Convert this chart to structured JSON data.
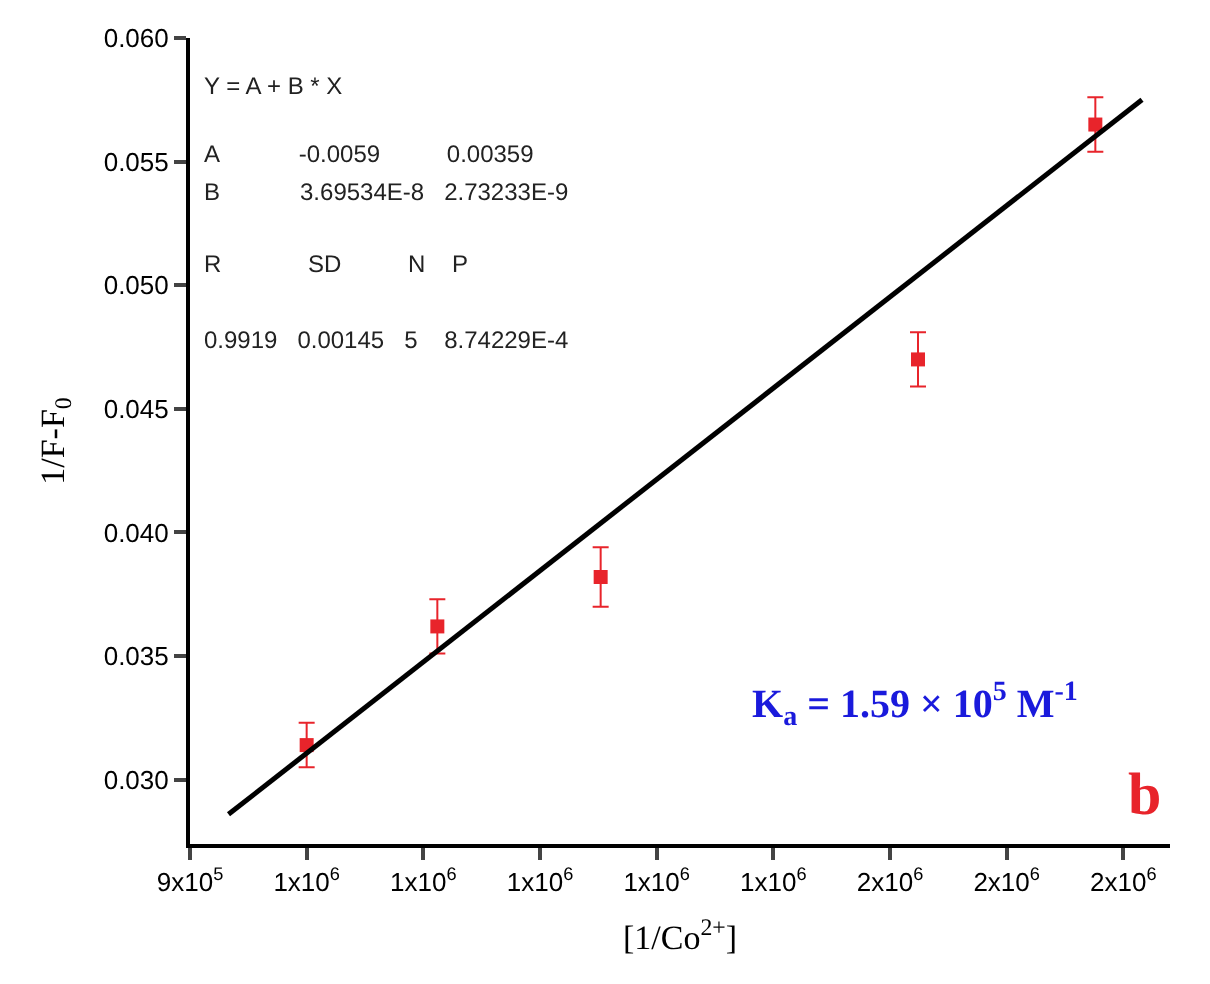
{
  "chart_data": {
    "type": "scatter",
    "xlabel": "[1/Co$^{2+}$]",
    "ylabel": "1/F-F$_{0}$",
    "xlim": [
      900000,
      1740000
    ],
    "ylim": [
      0.0274,
      0.06
    ],
    "xticks": [
      {
        "value": 900000,
        "label": "9x10$^{5}$"
      },
      {
        "value": 1000000,
        "label": "1x10$^{6}$"
      },
      {
        "value": 1100000,
        "label": "1x10$^{6}$"
      },
      {
        "value": 1200000,
        "label": "1x10$^{6}$"
      },
      {
        "value": 1300000,
        "label": "1x10$^{6}$"
      },
      {
        "value": 1400000,
        "label": "1x10$^{6}$"
      },
      {
        "value": 1500000,
        "label": "2x10$^{6}$"
      },
      {
        "value": 1600000,
        "label": "2x10$^{6}$"
      },
      {
        "value": 1700000,
        "label": "2x10$^{6}$"
      }
    ],
    "yticks": [
      {
        "value": 0.03,
        "label": "0.030"
      },
      {
        "value": 0.035,
        "label": "0.035"
      },
      {
        "value": 0.04,
        "label": "0.040"
      },
      {
        "value": 0.045,
        "label": "0.045"
      },
      {
        "value": 0.05,
        "label": "0.050"
      },
      {
        "value": 0.055,
        "label": "0.055"
      },
      {
        "value": 0.06,
        "label": "0.060"
      }
    ],
    "series": [
      {
        "color": "#e8242b",
        "marker": "square",
        "x": [
          1000000,
          1112000,
          1252000,
          1524000,
          1676000
        ],
        "values": [
          0.0314,
          0.0362,
          0.0382,
          0.047,
          0.0565
        ],
        "errors": [
          0.0009,
          0.0011,
          0.0012,
          0.0011,
          0.0011
        ]
      },
      {
        "type": "line",
        "color": "#000000",
        "marker": "none",
        "line_style": "solid",
        "x": [
          933000,
          1716000
        ],
        "values": [
          0.0286,
          0.0575
        ]
      }
    ],
    "annotations": [
      "Y = A + B * X",
      "A            -0.0059          0.00359",
      "B            3.69534E-8   2.73233E-9",
      "R             SD          N    P",
      "0.9919   0.00145   5    8.74229E-4",
      "K$_{a}$ = 1.59 × 10$^{5}$ M$^{-1}$",
      "b"
    ]
  }
}
